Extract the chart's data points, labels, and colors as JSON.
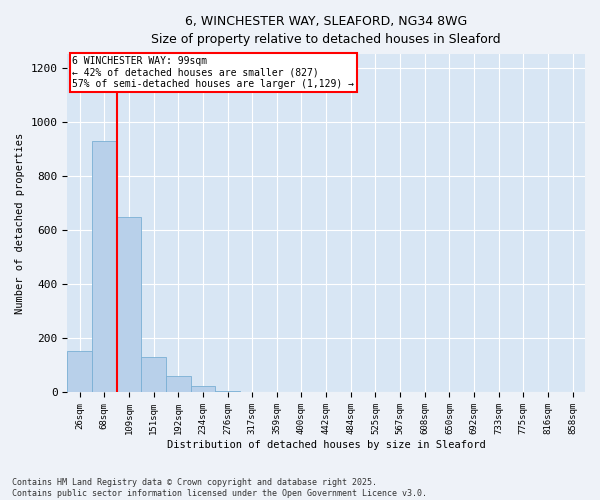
{
  "title_line1": "6, WINCHESTER WAY, SLEAFORD, NG34 8WG",
  "title_line2": "Size of property relative to detached houses in Sleaford",
  "xlabel": "Distribution of detached houses by size in Sleaford",
  "ylabel": "Number of detached properties",
  "bin_labels": [
    "26sqm",
    "68sqm",
    "109sqm",
    "151sqm",
    "192sqm",
    "234sqm",
    "276sqm",
    "317sqm",
    "359sqm",
    "400sqm",
    "442sqm",
    "484sqm",
    "525sqm",
    "567sqm",
    "608sqm",
    "650sqm",
    "692sqm",
    "733sqm",
    "775sqm",
    "816sqm",
    "858sqm"
  ],
  "bar_heights": [
    155,
    930,
    650,
    130,
    60,
    25,
    5,
    0,
    0,
    0,
    0,
    0,
    0,
    0,
    0,
    0,
    0,
    0,
    0,
    0,
    0
  ],
  "bar_color": "#b8d0ea",
  "bar_edge_color": "#7aafd4",
  "subject_line_color": "red",
  "annotation_title": "6 WINCHESTER WAY: 99sqm",
  "annotation_line1": "← 42% of detached houses are smaller (827)",
  "annotation_line2": "57% of semi-detached houses are larger (1,129) →",
  "ylim": [
    0,
    1250
  ],
  "yticks": [
    0,
    200,
    400,
    600,
    800,
    1000,
    1200
  ],
  "footer_line1": "Contains HM Land Registry data © Crown copyright and database right 2025.",
  "footer_line2": "Contains public sector information licensed under the Open Government Licence v3.0.",
  "bg_color": "#eef2f8",
  "plot_bg_color": "#d8e6f4",
  "title_fontsize": 10,
  "subtitle_fontsize": 9
}
